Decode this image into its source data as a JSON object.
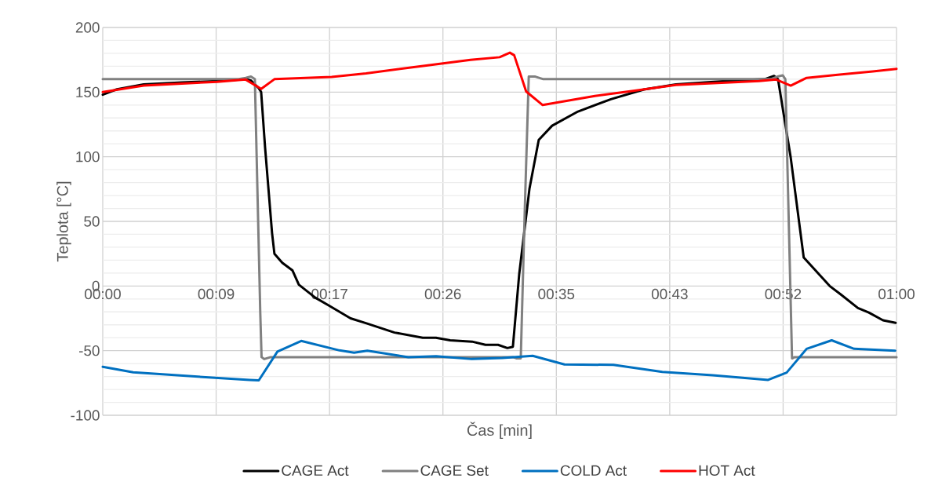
{
  "chart_data": {
    "type": "line",
    "xlabel": "Čas [min]",
    "ylabel": "Teplota [°C]",
    "xlim": [
      0,
      60.48
    ],
    "ylim": [
      -100,
      200
    ],
    "xticks": [
      {
        "value": 0,
        "label": "00:00"
      },
      {
        "value": 8.64,
        "label": "00:09"
      },
      {
        "value": 17.28,
        "label": "00:17"
      },
      {
        "value": 25.92,
        "label": "00:26"
      },
      {
        "value": 34.56,
        "label": "00:35"
      },
      {
        "value": 43.2,
        "label": "00:43"
      },
      {
        "value": 51.84,
        "label": "00:52"
      },
      {
        "value": 60.48,
        "label": "01:00"
      }
    ],
    "yticks": [
      -100,
      -50,
      0,
      50,
      100,
      150,
      200
    ],
    "grid": true,
    "legend": "bottom",
    "marker": "none",
    "line_style": "solid",
    "series": [
      {
        "name": "CAGE Act",
        "color": "#000000",
        "x": [
          0,
          1.01,
          3.12,
          6.05,
          8.72,
          10.89,
          11.29,
          11.89,
          12.07,
          12.37,
          12.9,
          13.08,
          13.68,
          14.46,
          14.94,
          16.19,
          17.21,
          18.88,
          20.14,
          22.23,
          24.38,
          25.39,
          26.47,
          28.14,
          29.16,
          30.12,
          30.83,
          31.25,
          31.73,
          32.51,
          33.22,
          34.24,
          36.21,
          38.72,
          41.23,
          43.68,
          47.45,
          50.43,
          51.15,
          51.45,
          52.41,
          53.41,
          54.31,
          55.39,
          56.23,
          57.54,
          58.37,
          59.45,
          60.41
        ],
        "values": [
          148,
          152,
          156,
          157.5,
          158.5,
          160,
          159,
          153,
          150,
          107,
          41,
          25,
          18,
          12,
          1,
          -9,
          -15,
          -25,
          -29,
          -36,
          -40,
          -40,
          -42,
          -43,
          -45.5,
          -45.5,
          -48,
          -47,
          9,
          75,
          113,
          124,
          135,
          144.5,
          152,
          156,
          158.5,
          160,
          162.5,
          160,
          100,
          22,
          12,
          0,
          -6.5,
          -17,
          -20.5,
          -26.5,
          -28.5
        ]
      },
      {
        "name": "CAGE Set",
        "color": "#808080",
        "x": [
          0,
          10.28,
          10.89,
          11.29,
          11.59,
          12.0,
          12.1,
          12.3,
          12.8,
          31.25,
          31.55,
          31.85,
          32.16,
          32.46,
          32.96,
          33.57,
          50.9,
          51.41,
          51.81,
          52.01,
          52.52,
          52.72,
          60.48
        ],
        "values": [
          160,
          160,
          161,
          162,
          160,
          -20,
          -55,
          -56.5,
          -55,
          -55,
          -56,
          -56,
          60,
          162,
          162,
          160,
          160,
          162,
          163,
          160,
          -56,
          -55,
          -55
        ]
      },
      {
        "name": "COLD Act",
        "color": "#0070c0",
        "x": [
          0,
          2.32,
          8.57,
          11.19,
          11.89,
          13.31,
          15.12,
          18.04,
          19.15,
          20.16,
          23.28,
          25.4,
          28.12,
          30.44,
          32.76,
          35.18,
          38.91,
          42.64,
          46.47,
          50.7,
          52.11,
          53.63,
          55.54,
          57.25,
          60.38
        ],
        "values": [
          -62.5,
          -66.8,
          -71,
          -72.7,
          -73,
          -50.7,
          -42.5,
          -49.8,
          -51.6,
          -50,
          -55,
          -54.3,
          -56.5,
          -55.7,
          -54,
          -60.7,
          -61,
          -66.5,
          -69,
          -72.6,
          -67,
          -48.6,
          -42,
          -48.6,
          -50
        ]
      },
      {
        "name": "HOT Act",
        "color": "#ff0000",
        "x": [
          0,
          3.12,
          8.72,
          10.89,
          12.07,
          13.08,
          17.44,
          20.06,
          25.0,
          28.02,
          30.24,
          31.02,
          31.35,
          32.26,
          33.52,
          37.5,
          40.42,
          43.65,
          50.0,
          51.31,
          52.42,
          53.63,
          56.15,
          58.67,
          60.48
        ],
        "values": [
          150,
          155,
          158,
          159.7,
          152.5,
          160,
          161.7,
          164.5,
          171,
          175,
          177,
          180.5,
          178.5,
          150.5,
          140,
          147,
          151,
          155.5,
          158.5,
          159.7,
          155,
          161,
          163.5,
          166,
          168
        ]
      }
    ]
  }
}
